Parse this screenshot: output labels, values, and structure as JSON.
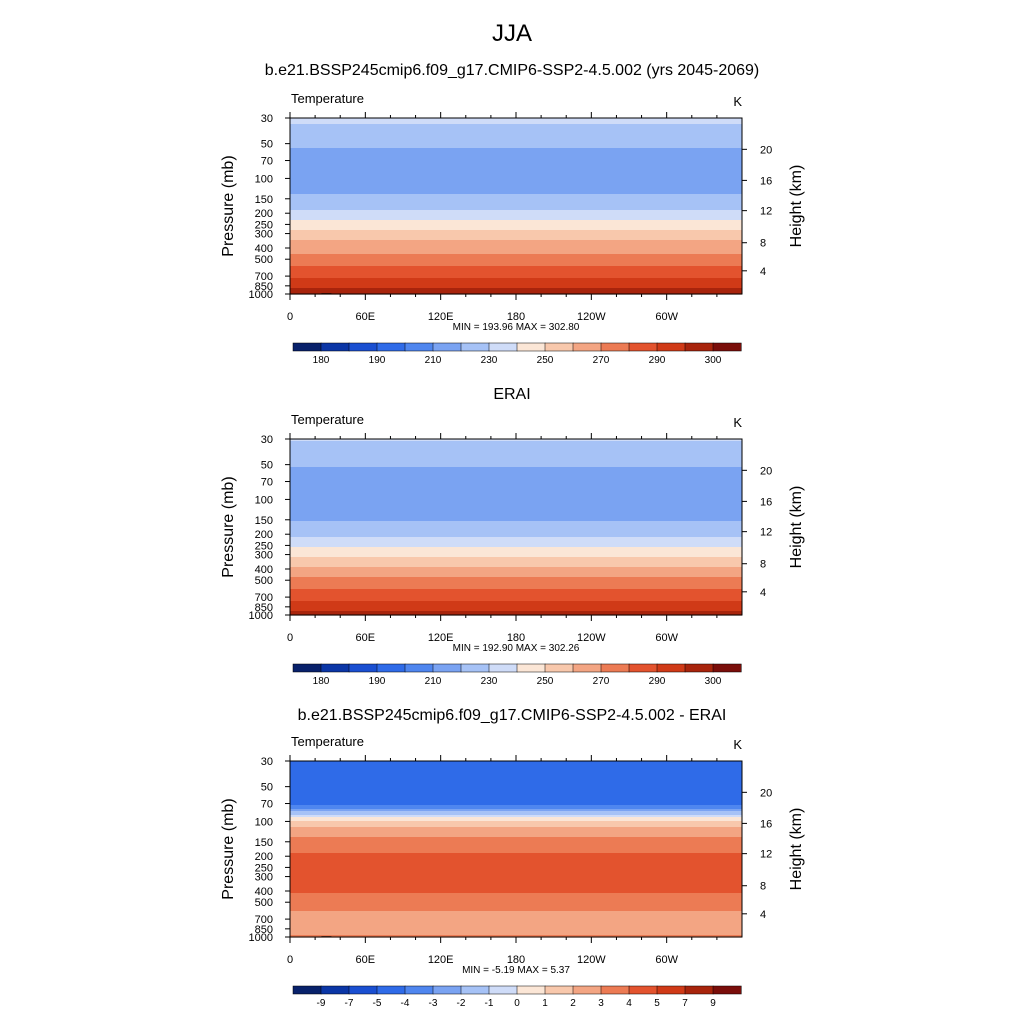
{
  "figure": {
    "title": "JJA"
  },
  "colors": {
    "palette": [
      "#08216b",
      "#0b36a6",
      "#1a4fd1",
      "#2f6be8",
      "#4f86ef",
      "#7aa3f2",
      "#a6c2f6",
      "#cfdcf8",
      "#fbe6d6",
      "#f8c8ac",
      "#f3a583",
      "#ec7b54",
      "#e3532e",
      "#d03a17",
      "#a8240c",
      "#7a0e0a"
    ]
  },
  "chart_data": [
    {
      "type": "heatmap",
      "panel_title": "b.e21.BSSP245cmip6.f09_g17.CMIP6-SSP2-4.5.002 (yrs 2045-2069)",
      "left_label": "Temperature",
      "units": "K",
      "ylabel": "Pressure (mb)",
      "ylabel_right": "Height (km)",
      "xticks": [
        "0",
        "60E",
        "120E",
        "180",
        "120W",
        "60W"
      ],
      "xlim": [
        0,
        360
      ],
      "yticks": [
        "30",
        "50",
        "70",
        "100",
        "150",
        "200",
        "250",
        "300",
        "400",
        "500",
        "700",
        "850",
        "1000"
      ],
      "ylim": [
        1000,
        30
      ],
      "right_ticks": [
        "20",
        "16",
        "12",
        "8",
        "4"
      ],
      "stats": "MIN = 193.96  MAX = 302.80",
      "colorbar_labels": [
        "180",
        "190",
        "210",
        "230",
        "250",
        "270",
        "290",
        "300"
      ],
      "colorbar_levels": [
        175,
        180,
        185,
        190,
        200,
        210,
        220,
        230,
        240,
        250,
        260,
        270,
        280,
        290,
        295,
        300
      ],
      "bands": [
        {
          "p": 30,
          "v": 222
        },
        {
          "p": 50,
          "v": 212
        },
        {
          "p": 70,
          "v": 204
        },
        {
          "p": 100,
          "v": 203
        },
        {
          "p": 150,
          "v": 212
        },
        {
          "p": 200,
          "v": 222
        },
        {
          "p": 250,
          "v": 234
        },
        {
          "p": 300,
          "v": 244
        },
        {
          "p": 400,
          "v": 256
        },
        {
          "p": 500,
          "v": 264
        },
        {
          "p": 700,
          "v": 278
        },
        {
          "p": 850,
          "v": 287
        },
        {
          "p": 1000,
          "v": 296
        }
      ],
      "topography": true
    },
    {
      "type": "heatmap",
      "panel_title": "ERAI",
      "left_label": "Temperature",
      "units": "K",
      "ylabel": "Pressure (mb)",
      "ylabel_right": "Height (km)",
      "xticks": [
        "0",
        "60E",
        "120E",
        "180",
        "120W",
        "60W"
      ],
      "xlim": [
        0,
        360
      ],
      "yticks": [
        "30",
        "50",
        "70",
        "100",
        "150",
        "200",
        "250",
        "300",
        "400",
        "500",
        "700",
        "850",
        "1000"
      ],
      "ylim": [
        1000,
        30
      ],
      "right_ticks": [
        "20",
        "16",
        "12",
        "8",
        "4"
      ],
      "stats": "MIN = 192.90  MAX = 302.26",
      "colorbar_labels": [
        "180",
        "190",
        "210",
        "230",
        "250",
        "270",
        "290",
        "300"
      ],
      "colorbar_levels": [
        175,
        180,
        185,
        190,
        200,
        210,
        220,
        230,
        240,
        250,
        260,
        270,
        280,
        290,
        295,
        300
      ],
      "bands": [
        {
          "p": 30,
          "v": 221
        },
        {
          "p": 50,
          "v": 211
        },
        {
          "p": 70,
          "v": 203
        },
        {
          "p": 100,
          "v": 201
        },
        {
          "p": 150,
          "v": 209
        },
        {
          "p": 200,
          "v": 218
        },
        {
          "p": 250,
          "v": 228
        },
        {
          "p": 300,
          "v": 238
        },
        {
          "p": 400,
          "v": 252
        },
        {
          "p": 500,
          "v": 262
        },
        {
          "p": 700,
          "v": 276
        },
        {
          "p": 850,
          "v": 285
        },
        {
          "p": 1000,
          "v": 294
        }
      ],
      "topography": false
    },
    {
      "type": "heatmap",
      "panel_title": "b.e21.BSSP245cmip6.f09_g17.CMIP6-SSP2-4.5.002 - ERAI",
      "left_label": "Temperature",
      "units": "K",
      "ylabel": "Pressure (mb)",
      "ylabel_right": "Height (km)",
      "xticks": [
        "0",
        "60E",
        "120E",
        "180",
        "120W",
        "60W"
      ],
      "xlim": [
        0,
        360
      ],
      "yticks": [
        "30",
        "50",
        "70",
        "100",
        "150",
        "200",
        "250",
        "300",
        "400",
        "500",
        "700",
        "850",
        "1000"
      ],
      "ylim": [
        1000,
        30
      ],
      "right_ticks": [
        "20",
        "16",
        "12",
        "8",
        "4"
      ],
      "stats": "MIN = -5.19  MAX =   5.37",
      "colorbar_labels": [
        "-9",
        "-7",
        "-5",
        "-4",
        "-3",
        "-2",
        "-1",
        "0",
        "1",
        "2",
        "3",
        "4",
        "5",
        "7",
        "9"
      ],
      "colorbar_levels": [
        -9,
        -7,
        -5,
        -4,
        -3,
        -2,
        -1,
        0,
        1,
        2,
        3,
        4,
        5,
        7,
        9
      ],
      "bands": [
        {
          "p": 30,
          "v": -4.5
        },
        {
          "p": 50,
          "v": -4.3
        },
        {
          "p": 70,
          "v": -4.6
        },
        {
          "p": 85,
          "v": -1.5
        },
        {
          "p": 100,
          "v": 1.5
        },
        {
          "p": 150,
          "v": 3.5
        },
        {
          "p": 200,
          "v": 4.2
        },
        {
          "p": 250,
          "v": 4.6
        },
        {
          "p": 300,
          "v": 4.4
        },
        {
          "p": 400,
          "v": 4.1
        },
        {
          "p": 500,
          "v": 3.5
        },
        {
          "p": 700,
          "v": 2.5
        },
        {
          "p": 850,
          "v": 2.2
        },
        {
          "p": 1000,
          "v": 3.2
        }
      ],
      "topography": true
    }
  ]
}
